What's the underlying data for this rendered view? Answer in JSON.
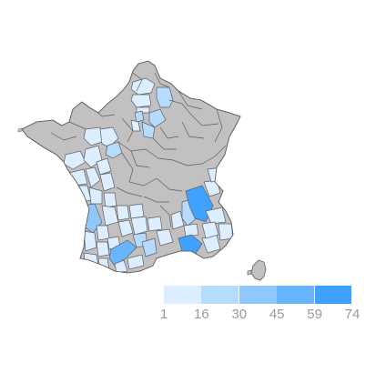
{
  "chart_data": {
    "type": "choropleth",
    "region": "France departments",
    "colors": {
      "no_data": "#c2c0c0",
      "border": "#5e5e5e",
      "scale": [
        "#dceeff",
        "#b5dbff",
        "#8fc8ff",
        "#67b5ff",
        "#40a2ff"
      ]
    },
    "legend": {
      "type": "piecewise",
      "placement": "bottom-right",
      "ticks": [
        "1",
        "16",
        "30",
        "45",
        "59",
        "74"
      ]
    },
    "departments": [
      {
        "name": "Nord",
        "bin": 0
      },
      {
        "name": "Aisne",
        "bin": 1
      },
      {
        "name": "Oise",
        "bin": 0
      },
      {
        "name": "Val-d'Oise",
        "bin": 0
      },
      {
        "name": "Paris",
        "bin": 1
      },
      {
        "name": "Marne",
        "bin": 1
      },
      {
        "name": "Seine-et-Marne",
        "bin": 1
      },
      {
        "name": "Essonne",
        "bin": 0
      },
      {
        "name": "Ille-et-Vilaine",
        "bin": 0
      },
      {
        "name": "Mayenne",
        "bin": 0
      },
      {
        "name": "Sarthe",
        "bin": 1
      },
      {
        "name": "Loire-Atlantique",
        "bin": 0
      },
      {
        "name": "Maine-et-Loire",
        "bin": 0
      },
      {
        "name": "Indre-et-Loire",
        "bin": 0
      },
      {
        "name": "Vendée",
        "bin": 0
      },
      {
        "name": "Deux-Sèvres",
        "bin": 0
      },
      {
        "name": "Vienne",
        "bin": 0
      },
      {
        "name": "Charente-Maritime",
        "bin": 0
      },
      {
        "name": "Charente",
        "bin": 0
      },
      {
        "name": "Haute-Vienne",
        "bin": 0
      },
      {
        "name": "Gironde",
        "bin": 2
      },
      {
        "name": "Dordogne",
        "bin": 0
      },
      {
        "name": "Corrèze",
        "bin": 0
      },
      {
        "name": "Lot",
        "bin": 0
      },
      {
        "name": "Landes",
        "bin": 0
      },
      {
        "name": "Lot-et-Garonne",
        "bin": 0
      },
      {
        "name": "Tarn-et-Garonne",
        "bin": 0
      },
      {
        "name": "Aveyron",
        "bin": 0
      },
      {
        "name": "Gers",
        "bin": 0
      },
      {
        "name": "Pyrénées-Atlantiques",
        "bin": 0
      },
      {
        "name": "Hautes-Pyrénées",
        "bin": 0
      },
      {
        "name": "Haute-Garonne",
        "bin": 3
      },
      {
        "name": "Tarn",
        "bin": 1
      },
      {
        "name": "Ariège",
        "bin": 0
      },
      {
        "name": "Aude",
        "bin": 0
      },
      {
        "name": "Hérault",
        "bin": 1
      },
      {
        "name": "Gard",
        "bin": 0
      },
      {
        "name": "Lozère",
        "bin": 0
      },
      {
        "name": "Cantal",
        "bin": 0
      },
      {
        "name": "Ardèche",
        "bin": 0
      },
      {
        "name": "Drôme",
        "bin": 1
      },
      {
        "name": "Isère",
        "bin": 4
      },
      {
        "name": "Savoie",
        "bin": 0
      },
      {
        "name": "Haute-Savoie",
        "bin": 0
      },
      {
        "name": "Hautes-Alpes",
        "bin": 0
      },
      {
        "name": "Vaucluse",
        "bin": 0
      },
      {
        "name": "Bouches-du-Rhône",
        "bin": 4
      },
      {
        "name": "Var",
        "bin": 0
      },
      {
        "name": "Alpes-de-Haute-Provence",
        "bin": 0
      },
      {
        "name": "Alpes-Maritimes",
        "bin": 0
      }
    ]
  }
}
